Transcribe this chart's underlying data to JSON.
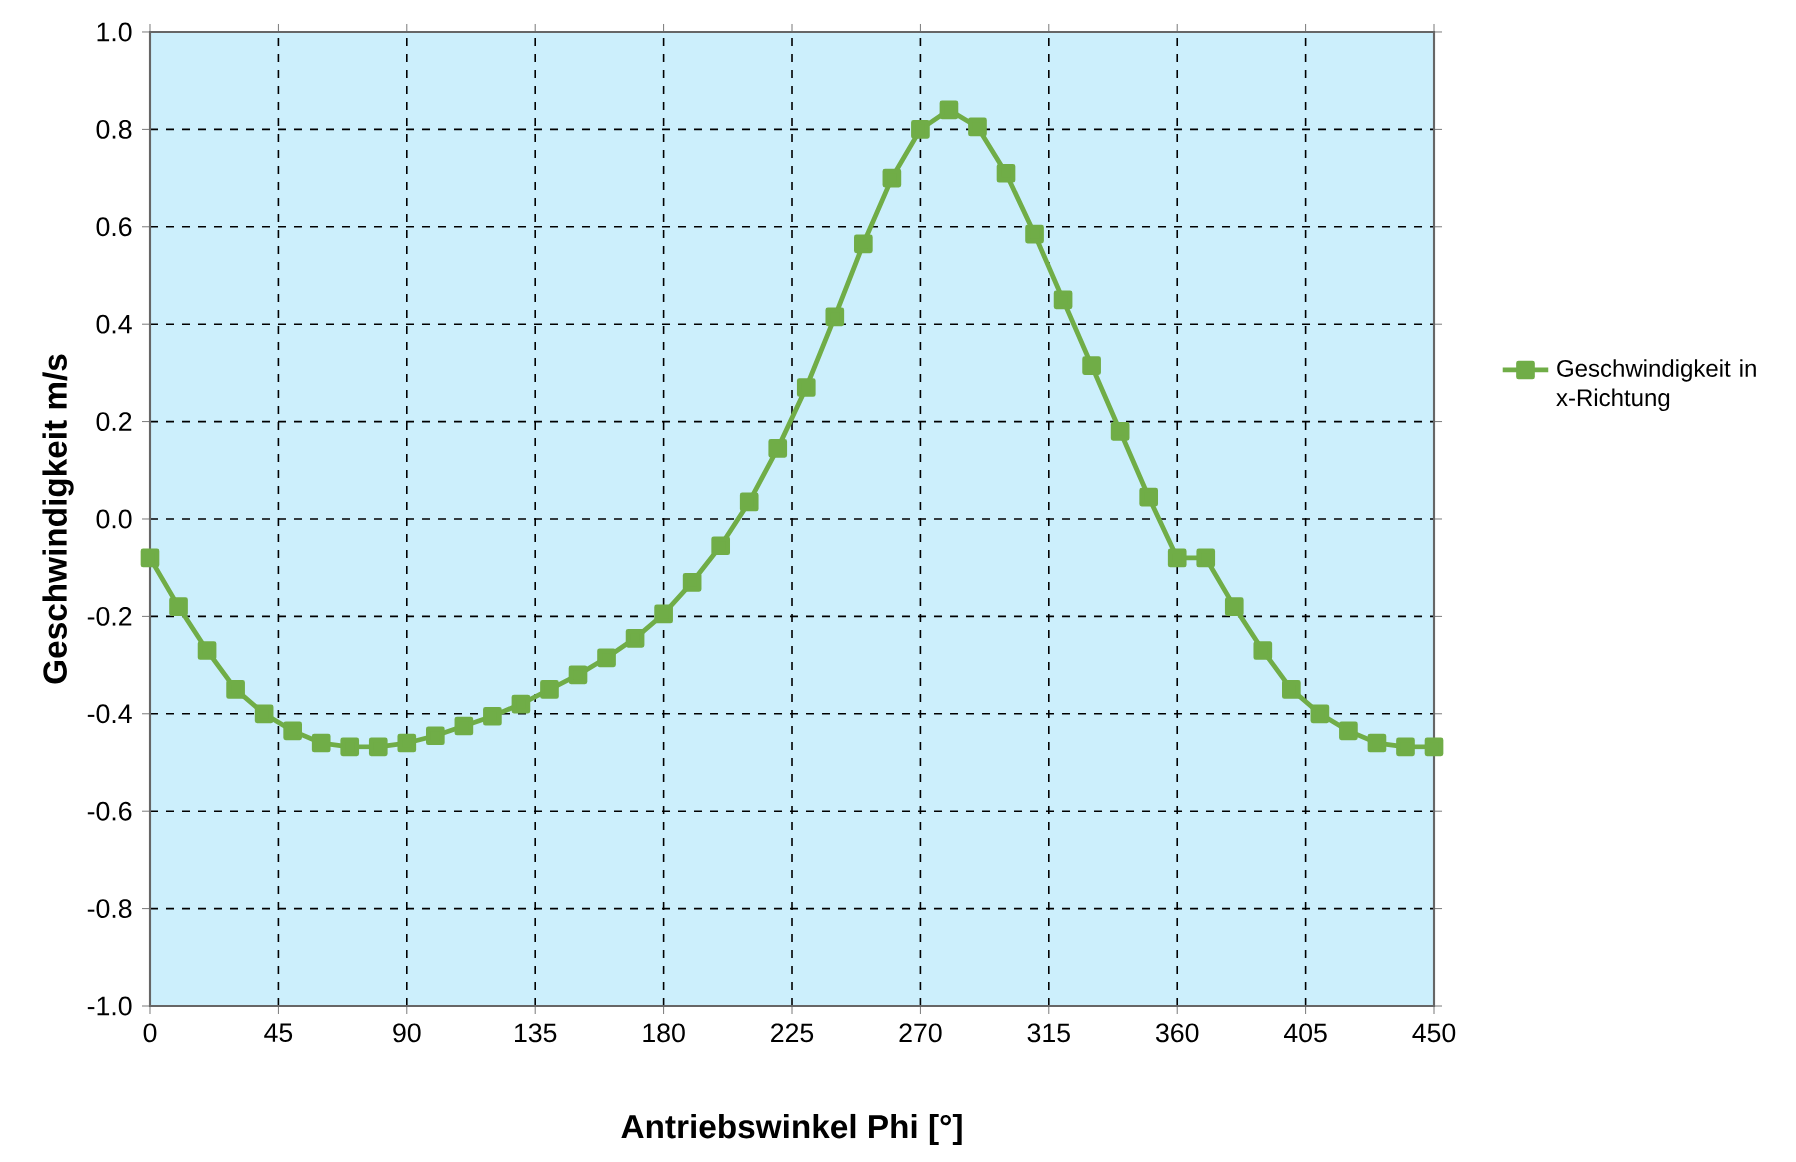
{
  "chart_data": {
    "type": "line",
    "xlabel": "Antriebswinkel Phi [°]",
    "ylabel": "Geschwindigkeit   m/s",
    "x": [
      0,
      10,
      20,
      30,
      40,
      50,
      60,
      70,
      80,
      90,
      100,
      110,
      120,
      130,
      140,
      150,
      160,
      170,
      180,
      190,
      200,
      210,
      220,
      230,
      240,
      250,
      260,
      270,
      280,
      290,
      300,
      310,
      320,
      330,
      340,
      350,
      360,
      370,
      380,
      390,
      400,
      410,
      420,
      430,
      440,
      450
    ],
    "series": [
      {
        "name": "Geschwindigkeit in x-Richtung",
        "color": "#70ad47",
        "values": [
          -0.08,
          -0.18,
          -0.27,
          -0.35,
          -0.4,
          -0.435,
          -0.46,
          -0.468,
          -0.468,
          -0.46,
          -0.445,
          -0.425,
          -0.405,
          -0.38,
          -0.35,
          -0.32,
          -0.285,
          -0.245,
          -0.195,
          -0.13,
          -0.055,
          0.035,
          0.145,
          0.27,
          0.415,
          0.565,
          0.7,
          0.8,
          0.84,
          0.805,
          0.71,
          0.585,
          0.45,
          0.315,
          0.18,
          0.045,
          -0.08,
          -0.08,
          -0.18,
          -0.27,
          -0.35,
          -0.4,
          -0.435,
          -0.46,
          -0.468,
          -0.468
        ]
      }
    ],
    "xlim": [
      0,
      450
    ],
    "xticks": [
      0,
      45,
      90,
      135,
      180,
      225,
      270,
      315,
      360,
      405,
      450
    ],
    "ylim": [
      -1.0,
      1.0
    ],
    "yticks": [
      {
        "value": -1.0,
        "label": "-1.0"
      },
      {
        "value": -0.8,
        "label": "-0.8"
      },
      {
        "value": -0.6,
        "label": "-0.6"
      },
      {
        "value": -0.4,
        "label": "-0.4"
      },
      {
        "value": -0.2,
        "label": "-0.2"
      },
      {
        "value": 0.0,
        "label": "0.0"
      },
      {
        "value": 0.2,
        "label": "0.2"
      },
      {
        "value": 0.4,
        "label": "0.4"
      },
      {
        "value": 0.6,
        "label": "0.6"
      },
      {
        "value": 0.8,
        "label": "0.8"
      },
      {
        "value": 1.0,
        "label": "1.0"
      }
    ],
    "grid": true,
    "legend": "right",
    "marker": "square",
    "line_style": "solid"
  }
}
